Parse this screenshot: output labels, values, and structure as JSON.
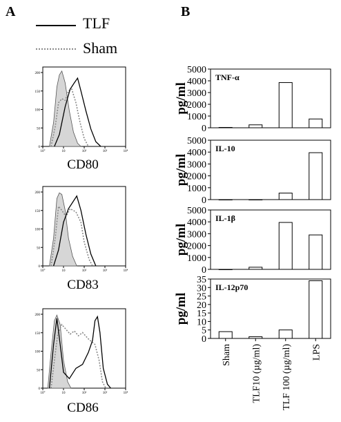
{
  "panels": {
    "a": "A",
    "b": "B"
  },
  "legend": [
    {
      "label": "TLF",
      "style": "solid"
    },
    {
      "label": "Sham",
      "style": "dotted"
    }
  ],
  "histograms": [
    {
      "marker": "CD80",
      "y_ticks": [
        "200",
        "150",
        "100",
        "50",
        "0"
      ],
      "x_ticks": [
        "10°",
        "10",
        "10²",
        "10³",
        "10⁴"
      ]
    },
    {
      "marker": "CD83",
      "y_ticks": [
        "200",
        "150",
        "100",
        "50",
        "0"
      ],
      "x_ticks": [
        "10°",
        "10",
        "10²",
        "10³",
        "10⁴"
      ]
    },
    {
      "marker": "CD86",
      "y_ticks": [
        "200",
        "150",
        "100",
        "50",
        "0"
      ],
      "x_ticks": [
        "10°",
        "10",
        "10²",
        "10³",
        "10⁴"
      ]
    }
  ],
  "chart_data": {
    "type": "bar",
    "ylabel": "pg/ml",
    "categories": [
      "Sham",
      "TLF10 (µg/ml)",
      "TLF 100 (µg/ml)",
      "LPS"
    ],
    "series": [
      {
        "name": "TNF-α",
        "values": [
          30,
          250,
          3850,
          750
        ],
        "ylim": [
          0,
          5000
        ],
        "yticks": [
          0,
          1000,
          2000,
          3000,
          4000,
          5000
        ]
      },
      {
        "name": "IL-10",
        "values": [
          0,
          0,
          550,
          3950
        ],
        "ylim": [
          0,
          5000
        ],
        "yticks": [
          0,
          1000,
          2000,
          3000,
          4000,
          5000
        ]
      },
      {
        "name": "IL-1β",
        "values": [
          0,
          180,
          3950,
          2900
        ],
        "ylim": [
          0,
          5000
        ],
        "yticks": [
          0,
          1000,
          2000,
          3000,
          4000,
          5000
        ]
      },
      {
        "name": "IL-12p70",
        "values": [
          4,
          1,
          5,
          34
        ],
        "ylim": [
          0,
          35
        ],
        "yticks": [
          0,
          5,
          10,
          15,
          20,
          25,
          30,
          35
        ]
      }
    ]
  }
}
